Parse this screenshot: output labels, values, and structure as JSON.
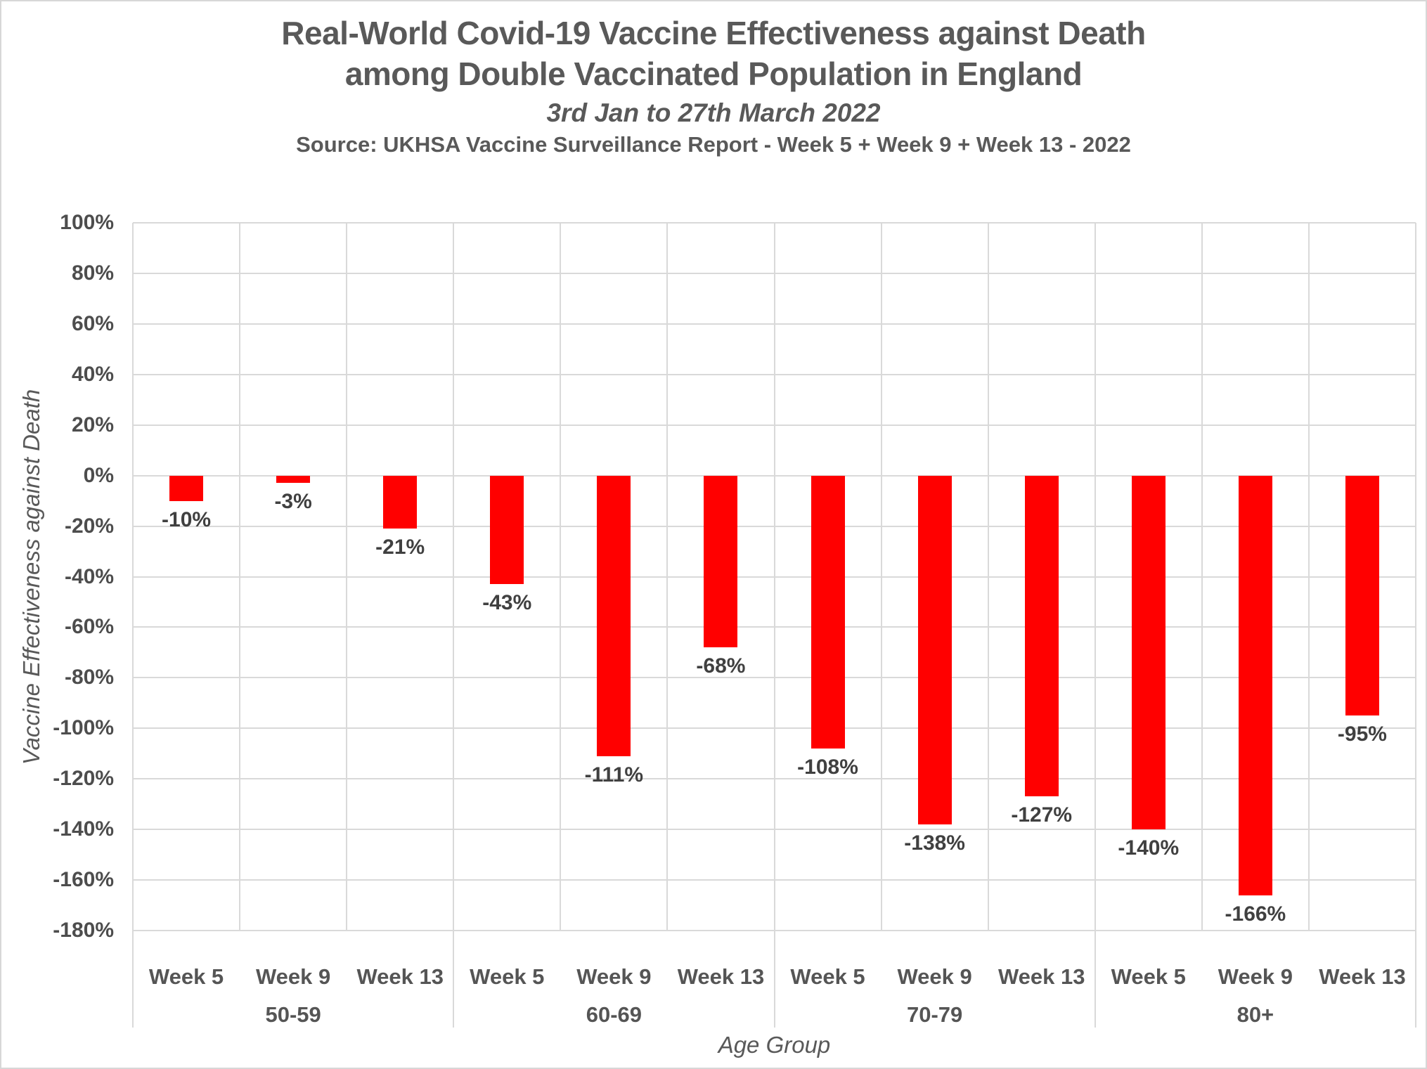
{
  "header": {
    "title_lines": [
      "Real-World Covid-19 Vaccine Effectiveness against Death",
      "among Double Vaccinated Population in England"
    ],
    "subtitle": "3rd Jan to 27th March 2022",
    "source": "Source: UKHSA Vaccine Surveillance Report - Week 5 + Week 9 + Week 13 - 2022"
  },
  "chart_data": {
    "type": "bar",
    "title": "Real-World Covid-19 Vaccine Effectiveness against Death among Double Vaccinated Population in England",
    "subtitle": "3rd Jan to 27th March 2022",
    "source": "Source: UKHSA Vaccine Surveillance Report - Week 5 + Week 9 + Week 13 - 2022",
    "xlabel": "Age Group",
    "ylabel": "Vaccine Effectiveness against Death",
    "ylim": [
      -180,
      100
    ],
    "ytick_step": 20,
    "grid": true,
    "legend": "none",
    "bar_color": "#ff0000",
    "yticks": [
      {
        "value": 100,
        "label": "100%"
      },
      {
        "value": 80,
        "label": "80%"
      },
      {
        "value": 60,
        "label": "60%"
      },
      {
        "value": 40,
        "label": "40%"
      },
      {
        "value": 20,
        "label": "20%"
      },
      {
        "value": 0,
        "label": "0%"
      },
      {
        "value": -20,
        "label": "-20%"
      },
      {
        "value": -40,
        "label": "-40%"
      },
      {
        "value": -60,
        "label": "-60%"
      },
      {
        "value": -80,
        "label": "-80%"
      },
      {
        "value": -100,
        "label": "-100%"
      },
      {
        "value": -120,
        "label": "-120%"
      },
      {
        "value": -140,
        "label": "-140%"
      },
      {
        "value": -160,
        "label": "-160%"
      },
      {
        "value": -180,
        "label": "-180%"
      }
    ],
    "groups": [
      {
        "label": "50-59",
        "categories": [
          "Week 5",
          "Week 9",
          "Week 13"
        ],
        "values": [
          -10,
          -3,
          -21
        ],
        "data_labels": [
          "-10%",
          "-3%",
          "-21%"
        ]
      },
      {
        "label": "60-69",
        "categories": [
          "Week 5",
          "Week 9",
          "Week 13"
        ],
        "values": [
          -43,
          -111,
          -68
        ],
        "data_labels": [
          "-43%",
          "-111%",
          "-68%"
        ]
      },
      {
        "label": "70-79",
        "categories": [
          "Week 5",
          "Week 9",
          "Week 13"
        ],
        "values": [
          -108,
          -138,
          -127
        ],
        "data_labels": [
          "-108%",
          "-138%",
          "-127%"
        ]
      },
      {
        "label": "80+",
        "categories": [
          "Week 5",
          "Week 9",
          "Week 13"
        ],
        "values": [
          -140,
          -166,
          -95
        ],
        "data_labels": [
          "-140%",
          "-166%",
          "-95%"
        ]
      }
    ]
  },
  "colors": {
    "bar": "#ff0000",
    "gridline": "#d9d9d9",
    "heading_text": "#595959",
    "data_label_text": "#404040"
  }
}
